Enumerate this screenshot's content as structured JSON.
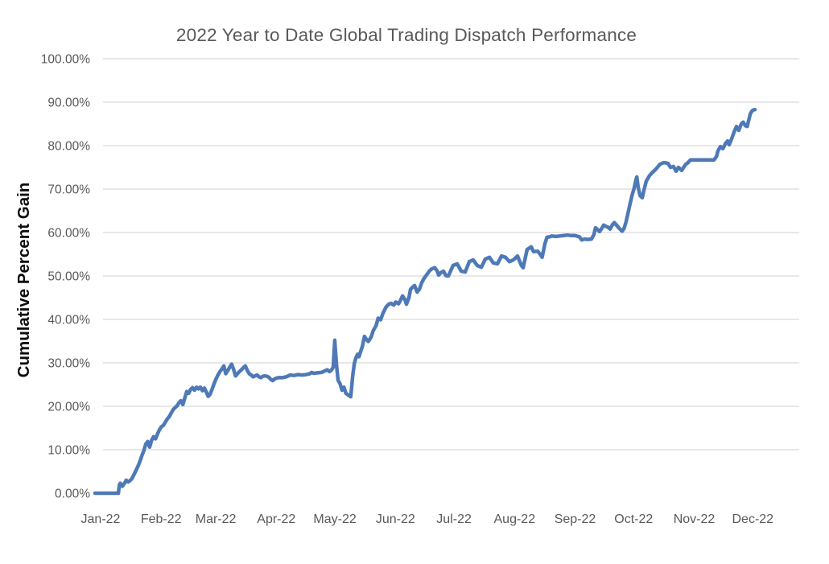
{
  "chart_data": {
    "type": "line",
    "title": "2022 Year to Date Global Trading Dispatch Performance",
    "ylabel": "Cumulative Percent Gain",
    "xlabel": "",
    "ylim": [
      0,
      100
    ],
    "y_tick_interval": 10,
    "y_tick_labels": [
      "0.00%",
      "10.00%",
      "20.00%",
      "30.00%",
      "40.00%",
      "50.00%",
      "60.00%",
      "70.00%",
      "80.00%",
      "90.00%",
      "100.00%"
    ],
    "x_tick_labels": [
      "Jan-22",
      "Feb-22",
      "Mar-22",
      "Apr-22",
      "May-22",
      "Jun-22",
      "Jul-22",
      "Aug-22",
      "Sep-22",
      "Oct-22",
      "Nov-22",
      "Dec-22"
    ],
    "x_tick_days": [
      0,
      31,
      59,
      90,
      120,
      151,
      181,
      212,
      243,
      273,
      304,
      334
    ],
    "x_domain_days": [
      0,
      338
    ],
    "grid": "horizontal",
    "legend": "none",
    "colors": {
      "line": "#4E79B7",
      "gridline": "#D9D9D9",
      "axis_text": "#595959",
      "title_text": "#595959",
      "ylabel_text": "#0D0D0D",
      "background": "#FFFFFF"
    },
    "series": [
      {
        "name": "Cumulative Percent Gain",
        "unit": "%",
        "points": [
          [
            0,
            0
          ],
          [
            2,
            0
          ],
          [
            4,
            0
          ],
          [
            6,
            0
          ],
          [
            8,
            0
          ],
          [
            10,
            0
          ],
          [
            12,
            0
          ],
          [
            12.5,
            1.9
          ],
          [
            13,
            2.3
          ],
          [
            14,
            1.6
          ],
          [
            15,
            2.2
          ],
          [
            16,
            3.0
          ],
          [
            17,
            2.6
          ],
          [
            18,
            2.9
          ],
          [
            19,
            3.4
          ],
          [
            20,
            4.3
          ],
          [
            21,
            5.2
          ],
          [
            22,
            6.2
          ],
          [
            23,
            7.3
          ],
          [
            24,
            8.6
          ],
          [
            25,
            9.8
          ],
          [
            26,
            11.3
          ],
          [
            27,
            11.9
          ],
          [
            28,
            10.6
          ],
          [
            29,
            12.2
          ],
          [
            30,
            13.0
          ],
          [
            31,
            12.5
          ],
          [
            32,
            13.6
          ],
          [
            33,
            14.6
          ],
          [
            34,
            15.3
          ],
          [
            35,
            15.6
          ],
          [
            36,
            16.3
          ],
          [
            37,
            17.1
          ],
          [
            38,
            17.6
          ],
          [
            39,
            18.4
          ],
          [
            40,
            19.2
          ],
          [
            41,
            19.7
          ],
          [
            42,
            20.1
          ],
          [
            43,
            20.8
          ],
          [
            44,
            21.3
          ],
          [
            45,
            20.4
          ],
          [
            46,
            21.9
          ],
          [
            47,
            23.4
          ],
          [
            48,
            23.0
          ],
          [
            49,
            23.9
          ],
          [
            50,
            24.3
          ],
          [
            51,
            23.7
          ],
          [
            52,
            24.4
          ],
          [
            53,
            24.0
          ],
          [
            54,
            24.4
          ],
          [
            55,
            23.6
          ],
          [
            56,
            24.2
          ],
          [
            57,
            23.3
          ],
          [
            58,
            22.3
          ],
          [
            59,
            22.8
          ],
          [
            60,
            24.0
          ],
          [
            61,
            25.2
          ],
          [
            62,
            26.3
          ],
          [
            63,
            27.2
          ],
          [
            64,
            28.0
          ],
          [
            65,
            28.6
          ],
          [
            66,
            29.3
          ],
          [
            67,
            27.5
          ],
          [
            68,
            28.2
          ],
          [
            69,
            29.0
          ],
          [
            70,
            29.7
          ],
          [
            71,
            28.5
          ],
          [
            72,
            27.0
          ],
          [
            73,
            27.5
          ],
          [
            74,
            28.0
          ],
          [
            75,
            28.4
          ],
          [
            76,
            28.9
          ],
          [
            77,
            29.3
          ],
          [
            78,
            28.3
          ],
          [
            79,
            27.5
          ],
          [
            80,
            27.2
          ],
          [
            81,
            26.8
          ],
          [
            82,
            27.0
          ],
          [
            83,
            27.2
          ],
          [
            84,
            26.8
          ],
          [
            85,
            26.6
          ],
          [
            86,
            26.9
          ],
          [
            87,
            27.0
          ],
          [
            88,
            26.9
          ],
          [
            89,
            26.7
          ],
          [
            90,
            26.2
          ],
          [
            91,
            25.9
          ],
          [
            92,
            26.3
          ],
          [
            93,
            26.5
          ],
          [
            94,
            26.6
          ],
          [
            96,
            26.6
          ],
          [
            98,
            26.8
          ],
          [
            99,
            27.0
          ],
          [
            100,
            27.2
          ],
          [
            102,
            27.1
          ],
          [
            104,
            27.3
          ],
          [
            106,
            27.2
          ],
          [
            108,
            27.3
          ],
          [
            110,
            27.5
          ],
          [
            111,
            27.8
          ],
          [
            112,
            27.6
          ],
          [
            114,
            27.7
          ],
          [
            116,
            27.8
          ],
          [
            118,
            28.2
          ],
          [
            119,
            28.4
          ],
          [
            120,
            28.0
          ],
          [
            121,
            28.3
          ],
          [
            122,
            29.0
          ],
          [
            122.8,
            35.2
          ],
          [
            123.7,
            29.5
          ],
          [
            124.5,
            26.0
          ],
          [
            125.5,
            25.2
          ],
          [
            126.5,
            23.7
          ],
          [
            127.5,
            24.4
          ],
          [
            128.5,
            23.0
          ],
          [
            130,
            22.5
          ],
          [
            131,
            22.2
          ],
          [
            132,
            27.0
          ],
          [
            132.8,
            29.8
          ],
          [
            133.5,
            31.0
          ],
          [
            134.5,
            32.0
          ],
          [
            135.2,
            31.4
          ],
          [
            136,
            32.5
          ],
          [
            137,
            33.9
          ],
          [
            138,
            36.1
          ],
          [
            139,
            35.4
          ],
          [
            140,
            34.9
          ],
          [
            141.5,
            36.0
          ],
          [
            142.5,
            37.4
          ],
          [
            144,
            38.6
          ],
          [
            145,
            40.3
          ],
          [
            146.3,
            39.9
          ],
          [
            147.5,
            41.4
          ],
          [
            149,
            42.8
          ],
          [
            150.4,
            43.5
          ],
          [
            151.7,
            43.7
          ],
          [
            153,
            43.3
          ],
          [
            154,
            44.0
          ],
          [
            155.5,
            43.6
          ],
          [
            156.6,
            44.5
          ],
          [
            157.5,
            45.4
          ],
          [
            158.7,
            44.6
          ],
          [
            159.5,
            43.5
          ],
          [
            160.8,
            45.0
          ],
          [
            161.6,
            46.9
          ],
          [
            162.8,
            47.5
          ],
          [
            163.7,
            47.8
          ],
          [
            165,
            46.3
          ],
          [
            166.2,
            47.0
          ],
          [
            167.4,
            48.5
          ],
          [
            168.6,
            49.5
          ],
          [
            169.8,
            50.2
          ],
          [
            171,
            51.0
          ],
          [
            172.3,
            51.6
          ],
          [
            174,
            51.9
          ],
          [
            175.2,
            51.2
          ],
          [
            176,
            50.2
          ],
          [
            177.2,
            50.8
          ],
          [
            178.5,
            51.1
          ],
          [
            179.7,
            50.1
          ],
          [
            181,
            50.0
          ],
          [
            183.4,
            52.4
          ],
          [
            185.5,
            52.8
          ],
          [
            187.6,
            51.1
          ],
          [
            189.6,
            50.9
          ],
          [
            191.7,
            53.3
          ],
          [
            193.7,
            53.7
          ],
          [
            195.8,
            52.4
          ],
          [
            197.9,
            52.0
          ],
          [
            199.9,
            53.9
          ],
          [
            202,
            54.3
          ],
          [
            204,
            53.0
          ],
          [
            206.1,
            52.8
          ],
          [
            208.2,
            54.6
          ],
          [
            210.2,
            54.3
          ],
          [
            212.3,
            53.3
          ],
          [
            214.3,
            53.7
          ],
          [
            216.4,
            54.6
          ],
          [
            218.4,
            52.4
          ],
          [
            219.3,
            51.9
          ],
          [
            221.3,
            56.1
          ],
          [
            223.4,
            56.7
          ],
          [
            224.6,
            55.6
          ],
          [
            226.7,
            55.7
          ],
          [
            228,
            55.0
          ],
          [
            229,
            54.3
          ],
          [
            230.4,
            57.4
          ],
          [
            231.5,
            58.9
          ],
          [
            232.8,
            59.0
          ],
          [
            234,
            59.2
          ],
          [
            236,
            59.1
          ],
          [
            238,
            59.2
          ],
          [
            240,
            59.3
          ],
          [
            242,
            59.4
          ],
          [
            244,
            59.3
          ],
          [
            246,
            59.3
          ],
          [
            248.1,
            59.0
          ],
          [
            249.3,
            58.3
          ],
          [
            251,
            58.5
          ],
          [
            252.2,
            58.4
          ],
          [
            254.3,
            58.5
          ],
          [
            255.5,
            59.5
          ],
          [
            256.3,
            61.1
          ],
          [
            257.6,
            60.6
          ],
          [
            258.4,
            60.2
          ],
          [
            259.6,
            61.0
          ],
          [
            260.5,
            61.7
          ],
          [
            261.7,
            61.4
          ],
          [
            262.5,
            61.3
          ],
          [
            263.8,
            60.8
          ],
          [
            265,
            61.8
          ],
          [
            266,
            62.3
          ],
          [
            268,
            61.2
          ],
          [
            270,
            60.3
          ],
          [
            271,
            61.0
          ],
          [
            272,
            62.5
          ],
          [
            273,
            64.5
          ],
          [
            274,
            66.5
          ],
          [
            275,
            68.5
          ],
          [
            276,
            70.0
          ],
          [
            277,
            72.0
          ],
          [
            277.5,
            72.8
          ],
          [
            278.2,
            70.4
          ],
          [
            279.2,
            68.5
          ],
          [
            280.3,
            68.0
          ],
          [
            281.3,
            70.0
          ],
          [
            282.3,
            71.8
          ],
          [
            284,
            73.1
          ],
          [
            285.2,
            73.7
          ],
          [
            287.3,
            74.6
          ],
          [
            289.3,
            75.7
          ],
          [
            291.4,
            76.1
          ],
          [
            293.5,
            75.9
          ],
          [
            294.7,
            75.0
          ],
          [
            296.3,
            75.2
          ],
          [
            297.6,
            74.1
          ],
          [
            298.8,
            75.0
          ],
          [
            300.5,
            74.3
          ],
          [
            302.5,
            75.7
          ],
          [
            303.5,
            76.0
          ],
          [
            305,
            76.7
          ],
          [
            308,
            76.7
          ],
          [
            311,
            76.7
          ],
          [
            314,
            76.7
          ],
          [
            317,
            76.7
          ],
          [
            318.3,
            77.5
          ],
          [
            319,
            78.7
          ],
          [
            320.3,
            79.8
          ],
          [
            321.6,
            79.3
          ],
          [
            322.8,
            80.4
          ],
          [
            324,
            81.1
          ],
          [
            324.8,
            80.2
          ],
          [
            326,
            81.5
          ],
          [
            327.3,
            83.1
          ],
          [
            328.5,
            84.4
          ],
          [
            329.7,
            83.5
          ],
          [
            331,
            85.0
          ],
          [
            332,
            85.4
          ],
          [
            333,
            84.6
          ],
          [
            334,
            84.4
          ],
          [
            334.8,
            85.8
          ],
          [
            335.6,
            87.3
          ],
          [
            336.5,
            88.0
          ],
          [
            337.2,
            88.2
          ],
          [
            338,
            88.3
          ]
        ]
      }
    ]
  }
}
